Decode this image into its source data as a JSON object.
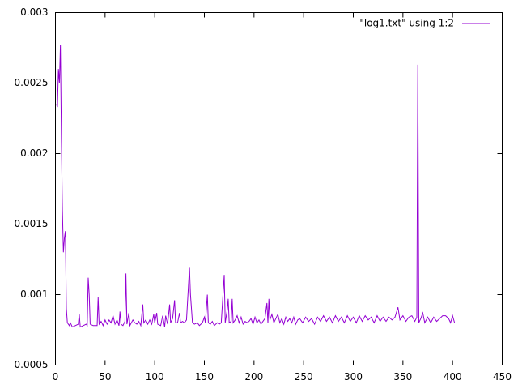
{
  "chart_data": {
    "type": "line",
    "x": [
      1,
      2,
      3,
      4,
      5,
      6,
      7,
      8,
      9,
      10,
      11,
      12,
      14,
      15,
      17,
      20,
      23,
      24,
      25,
      28,
      31,
      32,
      33,
      34,
      35,
      38,
      42,
      43,
      44,
      46,
      48,
      50,
      52,
      54,
      56,
      58,
      60,
      62,
      64,
      65,
      66,
      68,
      70,
      71,
      72,
      74,
      75,
      78,
      80,
      82,
      84,
      86,
      88,
      89,
      91,
      93,
      95,
      97,
      99,
      100,
      102,
      103,
      106,
      108,
      110,
      111,
      113,
      115,
      116,
      118,
      120,
      121,
      123,
      125,
      126,
      128,
      130,
      132,
      135,
      136,
      138,
      140,
      143,
      145,
      148,
      150,
      151,
      153,
      154,
      156,
      158,
      160,
      163,
      165,
      167,
      170,
      171,
      173,
      174,
      175,
      177,
      178,
      179,
      181,
      183,
      185,
      187,
      189,
      191,
      193,
      195,
      197,
      199,
      201,
      203,
      205,
      207,
      209,
      211,
      213,
      214,
      215,
      216,
      218,
      220,
      222,
      224,
      226,
      228,
      230,
      232,
      234,
      236,
      238,
      240,
      242,
      244,
      246,
      249,
      252,
      255,
      258,
      261,
      264,
      267,
      270,
      273,
      276,
      279,
      282,
      285,
      288,
      291,
      294,
      297,
      300,
      303,
      306,
      309,
      312,
      315,
      318,
      321,
      324,
      327,
      330,
      333,
      336,
      339,
      342,
      345,
      347,
      350,
      353,
      356,
      359,
      362,
      364,
      365,
      366,
      368,
      370,
      372,
      375,
      378,
      381,
      384,
      387,
      390,
      393,
      396,
      398,
      400,
      402
    ],
    "series": [
      {
        "name": "\"log1.txt\" using 1:2",
        "color": "#9400d3",
        "values": [
          0.00235,
          0.00233,
          0.0026,
          0.0025,
          0.00277,
          0.0021,
          0.0016,
          0.0013,
          0.0014,
          0.00145,
          0.0009,
          0.0008,
          0.00078,
          0.0008,
          0.00077,
          0.00078,
          0.00079,
          0.00086,
          0.00077,
          0.00078,
          0.00079,
          0.00078,
          0.00112,
          0.001,
          0.00079,
          0.00078,
          0.00078,
          0.00098,
          0.00079,
          0.00081,
          0.00078,
          0.00082,
          0.00079,
          0.00082,
          0.0008,
          0.00085,
          0.00079,
          0.00082,
          0.00078,
          0.00088,
          0.00079,
          0.00078,
          0.00081,
          0.00115,
          0.00079,
          0.00087,
          0.00078,
          0.00082,
          0.0008,
          0.00079,
          0.00081,
          0.00078,
          0.00093,
          0.0008,
          0.00082,
          0.00079,
          0.00082,
          0.00079,
          0.00086,
          0.0008,
          0.00087,
          0.00079,
          0.00078,
          0.00085,
          0.00077,
          0.00085,
          0.00079,
          0.00093,
          0.0008,
          0.00083,
          0.00096,
          0.0008,
          0.0008,
          0.00087,
          0.0008,
          0.00081,
          0.0008,
          0.00082,
          0.00119,
          0.001,
          0.0008,
          0.00079,
          0.0008,
          0.00078,
          0.0008,
          0.00084,
          0.0008,
          0.001,
          0.0008,
          0.00079,
          0.00081,
          0.00078,
          0.0008,
          0.00079,
          0.0008,
          0.00114,
          0.0008,
          0.00089,
          0.00097,
          0.0008,
          0.00081,
          0.00097,
          0.0008,
          0.00082,
          0.00085,
          0.0008,
          0.00084,
          0.00079,
          0.00081,
          0.0008,
          0.00081,
          0.00083,
          0.00079,
          0.00084,
          0.0008,
          0.00082,
          0.00079,
          0.00081,
          0.00083,
          0.00094,
          0.0008,
          0.00097,
          0.00082,
          0.00086,
          0.0008,
          0.00083,
          0.00086,
          0.0008,
          0.00083,
          0.00079,
          0.00084,
          0.00081,
          0.00083,
          0.0008,
          0.00084,
          0.00079,
          0.00082,
          0.00083,
          0.0008,
          0.00084,
          0.00081,
          0.00083,
          0.00079,
          0.00084,
          0.00081,
          0.00085,
          0.00081,
          0.00084,
          0.0008,
          0.00085,
          0.00081,
          0.00084,
          0.0008,
          0.00085,
          0.00081,
          0.00084,
          0.0008,
          0.00085,
          0.00081,
          0.00085,
          0.00082,
          0.00084,
          0.0008,
          0.00085,
          0.00081,
          0.00084,
          0.00081,
          0.00084,
          0.00082,
          0.00084,
          0.00091,
          0.00082,
          0.00085,
          0.00081,
          0.00084,
          0.00085,
          0.00081,
          0.00084,
          0.00263,
          0.0008,
          0.00083,
          0.00087,
          0.0008,
          0.00084,
          0.0008,
          0.00084,
          0.00081,
          0.00083,
          0.00085,
          0.00085,
          0.00083,
          0.0008,
          0.00085,
          0.0008
        ]
      }
    ],
    "xlim": [
      0,
      450
    ],
    "xticks": [
      0,
      50,
      100,
      150,
      200,
      250,
      300,
      350,
      400,
      450
    ],
    "ylim": [
      0.0005,
      0.003
    ],
    "yticks": [
      0.0005,
      0.001,
      0.0015,
      0.002,
      0.0025,
      0.003
    ],
    "legend": "top-right"
  }
}
